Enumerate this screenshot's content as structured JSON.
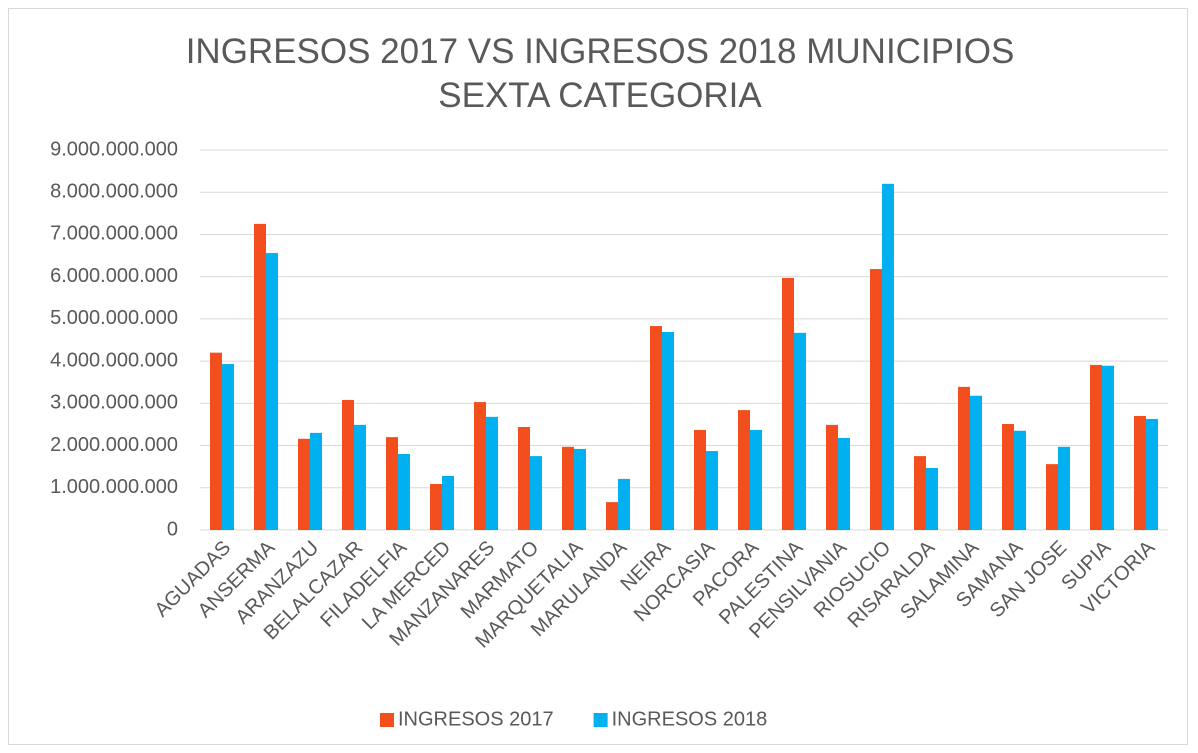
{
  "chart_data": {
    "type": "bar",
    "title": "INGRESOS 2017 VS INGRESOS 2018 MUNICIPIOS SEXTA CATEGORIA",
    "categories": [
      "AGUADAS",
      "ANSERMA",
      "ARANZAZU",
      "BELALCAZAR",
      "FILADELFIA",
      "LA MERCED",
      "MANZANARES",
      "MARMATO",
      "MARQUETALIA",
      "MARULANDA",
      "NEIRA",
      "NORCASIA",
      "PACORA",
      "PALESTINA",
      "PENSILVANIA",
      "RIOSUCIO",
      "RISARALDA",
      "SALAMINA",
      "SAMANA",
      "SAN JOSE",
      "SUPIA",
      "VICTORIA"
    ],
    "series": [
      {
        "name": "INGRESOS 2017",
        "color": "#f24e1e",
        "values": [
          4200000000,
          7250000000,
          2160000000,
          3080000000,
          2200000000,
          1090000000,
          3030000000,
          2440000000,
          1970000000,
          660000000,
          4830000000,
          2370000000,
          2840000000,
          5970000000,
          2490000000,
          6180000000,
          1750000000,
          3390000000,
          2510000000,
          1560000000,
          3910000000,
          2700000000
        ]
      },
      {
        "name": "INGRESOS 2018",
        "color": "#00b0f0",
        "values": [
          3930000000,
          6560000000,
          2300000000,
          2490000000,
          1800000000,
          1280000000,
          2680000000,
          1750000000,
          1920000000,
          1210000000,
          4690000000,
          1870000000,
          2370000000,
          4670000000,
          2180000000,
          8200000000,
          1470000000,
          3180000000,
          2350000000,
          1970000000,
          3890000000,
          2630000000
        ]
      }
    ],
    "ylim": [
      0,
      9000000000
    ],
    "yticks": [
      0,
      {
        "value": 1000000000,
        "label": "1.000.000.000"
      },
      {
        "value": 2000000000,
        "label": "2.000.000.000"
      },
      {
        "value": 3000000000,
        "label": "3.000.000.000"
      },
      {
        "value": 4000000000,
        "label": "4.000.000.000"
      },
      {
        "value": 5000000000,
        "label": "5.000.000.000"
      },
      {
        "value": 6000000000,
        "label": "6.000.000.000"
      },
      {
        "value": 7000000000,
        "label": "7.000.000.000"
      },
      {
        "value": 8000000000,
        "label": "8.000.000.000"
      },
      {
        "value": 9000000000,
        "label": "9.000.000.000"
      }
    ],
    "grid": true,
    "legend": "bottom"
  }
}
